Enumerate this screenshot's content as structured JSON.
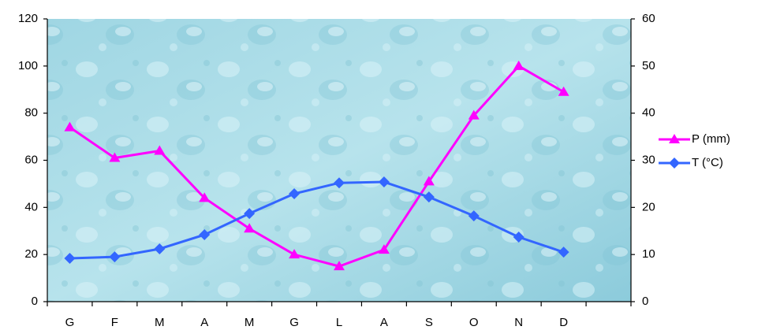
{
  "chart_data": {
    "type": "line",
    "categories": [
      "G",
      "F",
      "M",
      "A",
      "M",
      "G",
      "L",
      "A",
      "S",
      "O",
      "N",
      "D",
      null
    ],
    "series": [
      {
        "name": "P (mm)",
        "color": "#ff00ff",
        "marker": "triangle",
        "values": [
          74,
          61,
          64,
          44,
          31,
          20,
          15,
          22,
          51,
          79,
          100,
          89,
          null
        ]
      },
      {
        "name": "T (°C)",
        "color": "#3366ff",
        "marker": "diamond",
        "axis": "y2",
        "values": [
          9.2,
          9.5,
          11.2,
          14.2,
          18.7,
          22.9,
          25.2,
          25.4,
          22.2,
          18.2,
          13.7,
          10.5,
          null
        ]
      }
    ],
    "ylim": [
      0,
      120
    ],
    "yticks": [
      0,
      20,
      40,
      60,
      80,
      100,
      120
    ],
    "y2lim": [
      0,
      60
    ],
    "y2ticks": [
      0,
      10,
      20,
      30,
      40,
      50,
      60
    ],
    "legend": "right"
  }
}
